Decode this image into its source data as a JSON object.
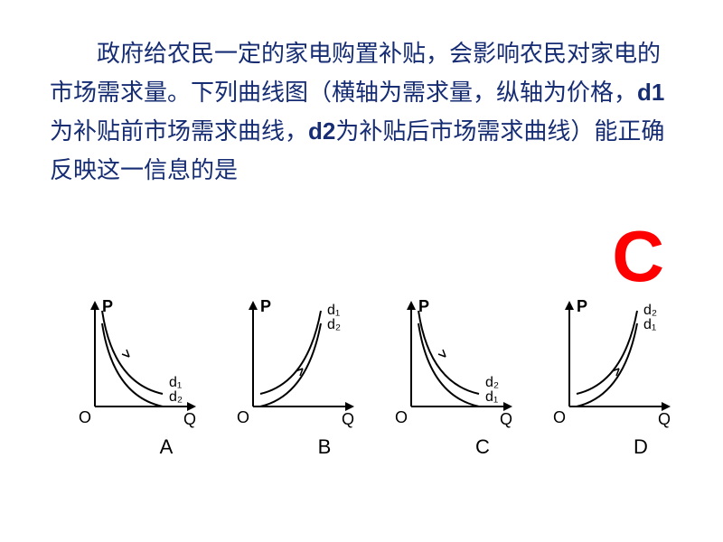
{
  "question": {
    "line1_indent": "　　",
    "part1": "政府给农民一定的家电购置补贴，会影响农民对家电的市场需求量。下列曲线图（横轴为需求量，纵轴为价格，",
    "bold_d1": "d1",
    "part2": "为补贴前市场需求曲线，",
    "bold_d2": "d2",
    "part3": "为补贴后市场需求曲线）能正确反映这一信息的是",
    "color": "#162c73",
    "fontsize": 26
  },
  "answer": {
    "letter": "C",
    "color": "#ff0000",
    "fontsize": 80
  },
  "axis_labels": {
    "P": "P",
    "Q": "Q",
    "O": "O"
  },
  "curve_labels": {
    "d1": "d₁",
    "d2": "d₂"
  },
  "charts": {
    "width": 150,
    "height": 170,
    "axis_color": "#000000",
    "curve_color": "#000000",
    "label_fontsize": 18,
    "items": [
      {
        "id": "A",
        "curve_dir": "down",
        "top_label": "d1",
        "bottom_label": "d2",
        "top_label_pos": "end",
        "bottom_label_pos": "end"
      },
      {
        "id": "B",
        "curve_dir": "up",
        "top_label": "d1",
        "bottom_label": "d2",
        "top_label_pos": "end",
        "bottom_label_pos": "end"
      },
      {
        "id": "C",
        "curve_dir": "down",
        "top_label": "d2",
        "bottom_label": "d1",
        "top_label_pos": "end",
        "bottom_label_pos": "end"
      },
      {
        "id": "D",
        "curve_dir": "up",
        "top_label": "d2",
        "bottom_label": "d1",
        "top_label_pos": "end",
        "bottom_label_pos": "end"
      }
    ]
  }
}
